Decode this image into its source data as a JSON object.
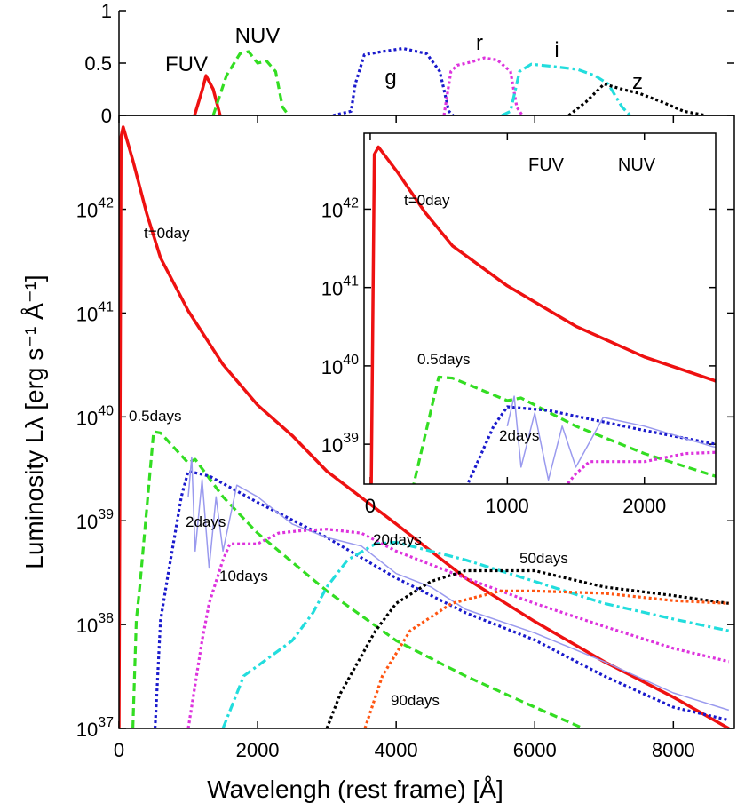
{
  "chart_data": [
    {
      "type": "line",
      "xlim": [
        0,
        8880
      ],
      "ylim": [
        0,
        1
      ],
      "yticks": [
        0,
        0.5,
        1
      ],
      "series": [
        {
          "name": "FUV",
          "color": "#ee1111",
          "dash": "solid",
          "x": [
            1090,
            1205,
            1256,
            1360,
            1460
          ],
          "values": [
            0,
            0.25,
            0.38,
            0.25,
            0
          ]
        },
        {
          "name": "NUV",
          "color": "#33dd22",
          "dash": "dashed",
          "x": [
            1360,
            1550,
            1745,
            1870,
            2000,
            2130,
            2260,
            2360,
            2450
          ],
          "values": [
            0,
            0.38,
            0.59,
            0.61,
            0.5,
            0.52,
            0.42,
            0.08,
            0
          ]
        },
        {
          "name": "g",
          "color": "#1a1acc",
          "dash": "dotted",
          "x": [
            3090,
            3350,
            3410,
            3540,
            3800,
            4100,
            4440,
            4630,
            4760,
            4820
          ],
          "values": [
            0,
            0.04,
            0.3,
            0.58,
            0.61,
            0.64,
            0.59,
            0.42,
            0.04,
            0
          ]
        },
        {
          "name": "r",
          "color": "#dd33dd",
          "dash": "dotted",
          "x": [
            4690,
            4790,
            4880,
            5080,
            5270,
            5460,
            5650,
            5740,
            5820
          ],
          "values": [
            0,
            0.42,
            0.48,
            0.51,
            0.55,
            0.53,
            0.42,
            0.08,
            0
          ]
        },
        {
          "name": "i",
          "color": "#22dddd",
          "dash": "dashdot",
          "x": [
            5525,
            5650,
            5780,
            5950,
            6230,
            6620,
            6870,
            7060,
            7260,
            7380
          ],
          "values": [
            0,
            0.04,
            0.42,
            0.49,
            0.47,
            0.44,
            0.38,
            0.3,
            0.08,
            0
          ]
        },
        {
          "name": "z",
          "color": "#000000",
          "dash": "dotted",
          "x": [
            6490,
            6740,
            7000,
            7260,
            7510,
            7830,
            8150,
            8470
          ],
          "values": [
            0,
            0.13,
            0.3,
            0.25,
            0.21,
            0.13,
            0.04,
            0
          ]
        }
      ]
    },
    {
      "type": "line",
      "log_y": true,
      "x_label": "Wavelengh (rest frame) [Å]",
      "y_label": "Luminosity Lλ [erg s⁻¹ Å⁻¹]",
      "xlim": [
        0,
        8880
      ],
      "ylim": [
        1e+37,
        8e+42
      ],
      "xticks": [
        0,
        2000,
        4000,
        6000,
        8000
      ],
      "yticks": [
        {
          "value": 1e+37,
          "label": "10",
          "power": "37"
        },
        {
          "value": 1e+38,
          "label": "10",
          "power": "38"
        },
        {
          "value": 1e+39,
          "label": "10",
          "power": "39"
        },
        {
          "value": 1e+40,
          "label": "10",
          "power": "40"
        },
        {
          "value": 1e+41,
          "label": "10",
          "power": "41"
        },
        {
          "value": 1e+42,
          "label": "10",
          "power": "42"
        }
      ],
      "series": [
        {
          "name": "t=0day",
          "color": "#ee1111",
          "dash": "solid",
          "x": [
            0,
            30,
            60,
            200,
            400,
            600,
            1000,
            1500,
            2000,
            2500,
            3000,
            4000,
            5000,
            6000,
            7000,
            8000,
            8800
          ],
          "values": [
            1e+37,
            5e+42,
            6.2e+42,
            2.95e+42,
            9.1e+41,
            3.4e+41,
            1.05e+41,
            3.2e+40,
            1.3e+40,
            6.6e+39,
            3e+39,
            9.3e+38,
            2.8e+38,
            1.07e+38,
            4.4e+37,
            2e+37,
            1e+37
          ]
        },
        {
          "name": "0.5days",
          "color": "#33dd22",
          "dash": "dashed",
          "x": [
            200,
            250,
            300,
            500,
            600,
            1000,
            1100,
            1500,
            2000,
            3000,
            4000,
            5000,
            6000,
            6700
          ],
          "values": [
            1e+37,
            1.1e+38,
            2.3e+38,
            7.2e+39,
            7e+39,
            3.6e+39,
            3.9e+39,
            1.7e+39,
            7.6e+38,
            2.1e+38,
            7e+37,
            3.2e+37,
            1.6e+37,
            1e+37
          ]
        },
        {
          "name": "2days",
          "color": "#1a1acc",
          "dash": "dotted",
          "x": [
            520,
            600,
            700,
            900,
            1000,
            1300,
            2000,
            3000,
            4000,
            5000,
            6000,
            7000,
            8000,
            8800
          ],
          "values": [
            1e+37,
            1.1e+38,
            2.8e+38,
            1.7e+39,
            3e+39,
            2.7e+39,
            1.5e+39,
            6.9e+38,
            2.8e+38,
            1.3e+38,
            7.1e+37,
            3.2e+37,
            1.6e+37,
            1.2e+37
          ]
        },
        {
          "color": "#9a9aee",
          "dash": "thin",
          "x": [
            1000,
            1050,
            1100,
            1200,
            1300,
            1400,
            1500,
            1700,
            2000,
            2500,
            3000,
            3500,
            4000,
            4500,
            5000,
            6000,
            7000,
            8000,
            8800
          ],
          "values": [
            1.7e+39,
            4.1e+39,
            5.1e+38,
            2.5e+39,
            3.5e+38,
            1.7e+39,
            5.1e+38,
            2.2e+39,
            1.7e+39,
            9.3e+38,
            6.9e+38,
            5.7e+38,
            3.1e+38,
            2.3e+38,
            1.4e+38,
            8.3e+37,
            4.4e+37,
            2.2e+37,
            1.5e+37
          ]
        },
        {
          "name": "10days",
          "color": "#dd33dd",
          "dash": "dotted",
          "x": [
            1000,
            1200,
            1300,
            1500,
            1600,
            2000,
            2300,
            2600,
            3000,
            3500,
            4000,
            5000,
            6000,
            7000,
            8000,
            8800
          ],
          "values": [
            1e+37,
            7e+37,
            1.6e+38,
            4.2e+38,
            6e+38,
            6e+38,
            7.6e+38,
            8e+38,
            8.3e+38,
            7.6e+38,
            5.1e+38,
            2.8e+38,
            1.6e+38,
            9.6e+37,
            5.9e+37,
            4.4e+37
          ]
        },
        {
          "name": "20days",
          "color": "#22dddd",
          "dash": "dashdot",
          "x": [
            1500,
            1800,
            2500,
            2800,
            3000,
            3300,
            3700,
            4000,
            5000,
            6000,
            7000,
            8000,
            8800
          ],
          "values": [
            1e+37,
            3.2e+37,
            7e+37,
            1.3e+38,
            2.3e+38,
            4.2e+38,
            6e+38,
            6.2e+38,
            4.2e+38,
            2.6e+38,
            1.6e+38,
            1.13e+38,
            8.7e+37
          ]
        },
        {
          "name": "50days",
          "color": "#000000",
          "dash": "dotted",
          "x": [
            3000,
            3200,
            3700,
            4000,
            4500,
            5000,
            6000,
            7000,
            8000,
            8800
          ],
          "values": [
            1e+37,
            2.2e+37,
            8.7e+37,
            1.6e+38,
            2.6e+38,
            3.3e+38,
            3.3e+38,
            2.3e+38,
            1.9e+38,
            1.6e+38
          ]
        },
        {
          "name": "90days",
          "color": "#ff5511",
          "dash": "dotted",
          "x": [
            3550,
            3800,
            4200,
            4800,
            5500,
            6000,
            7000,
            8000,
            8800
          ],
          "values": [
            1e+37,
            3.2e+37,
            8.7e+37,
            1.6e+38,
            2.1e+38,
            2.1e+38,
            2e+38,
            1.7e+38,
            1.6e+38
          ]
        }
      ]
    },
    {
      "type": "inset",
      "log_y": true,
      "xlim": [
        -45,
        2520
      ],
      "ylim": [
        3.1e+38,
        9.3e+42
      ],
      "xticks": [
        0,
        1000,
        2000
      ],
      "yticks": [
        {
          "value": 1e+39,
          "label": "10",
          "power": "39"
        },
        {
          "value": 1e+40,
          "label": "10",
          "power": "40"
        },
        {
          "value": 1e+41,
          "label": "10",
          "power": "41"
        },
        {
          "value": 1e+42,
          "label": "10",
          "power": "42"
        }
      ],
      "annotations": [
        "FUV",
        "NUV"
      ]
    }
  ]
}
